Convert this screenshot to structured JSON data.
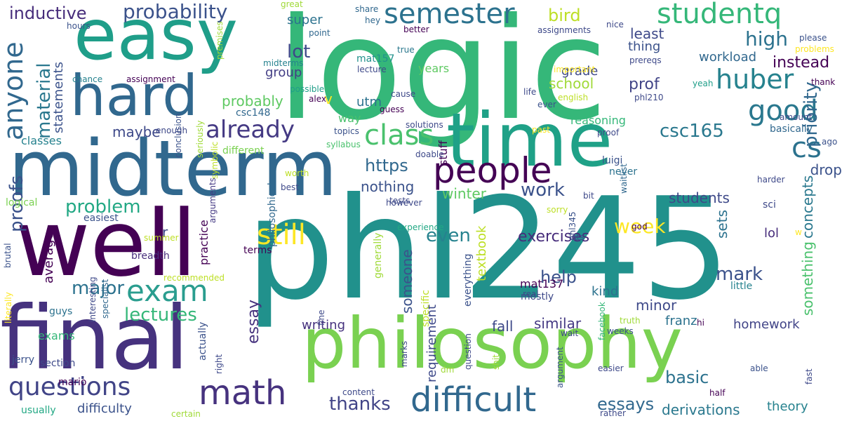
{
  "words": [
    {
      "text": "logic",
      "color": "#35b779"
    },
    {
      "text": "phl245",
      "color": "#21918c"
    },
    {
      "text": "midterm",
      "color": "#31688e"
    },
    {
      "text": "well",
      "color": "#440154"
    },
    {
      "text": "easy",
      "color": "#1f9e89"
    },
    {
      "text": "final",
      "color": "#46327e"
    },
    {
      "text": "philosophy",
      "color": "#7ad151"
    },
    {
      "text": "time",
      "color": "#1fa187"
    },
    {
      "text": "hard",
      "color": "#31688e"
    },
    {
      "text": "difficult",
      "color": "#31688e"
    },
    {
      "text": "math",
      "color": "#46327e"
    },
    {
      "text": "questions",
      "color": "#414487"
    },
    {
      "text": "people",
      "color": "#440154"
    },
    {
      "text": "exam",
      "color": "#2a9d8f"
    },
    {
      "text": "semester",
      "color": "#2c728e"
    },
    {
      "text": "studentq",
      "color": "#35b779"
    },
    {
      "text": "huber",
      "color": "#26828e"
    },
    {
      "text": "good",
      "color": "#2a788e"
    },
    {
      "text": "class",
      "color": "#4ac16d"
    },
    {
      "text": "still",
      "color": "#fde725"
    },
    {
      "text": "cs",
      "color": "#2c728e"
    },
    {
      "text": "already",
      "color": "#443983"
    },
    {
      "text": "anyone",
      "color": "#31688e"
    },
    {
      "text": "probability",
      "color": "#3b528b"
    },
    {
      "text": "inductive",
      "color": "#472d7b"
    },
    {
      "text": "lectures",
      "color": "#35b779"
    },
    {
      "text": "major",
      "color": "#2c728e"
    },
    {
      "text": "problem",
      "color": "#22a884"
    },
    {
      "text": "thanks",
      "color": "#414487"
    },
    {
      "text": "work",
      "color": "#3b528b"
    },
    {
      "text": "week",
      "color": "#fde725"
    },
    {
      "text": "csc165",
      "color": "#2a788e"
    },
    {
      "text": "high",
      "color": "#2c728e"
    },
    {
      "text": "bird",
      "color": "#bddf26"
    },
    {
      "text": "lot",
      "color": "#3e4989"
    },
    {
      "text": "material",
      "color": "#2a788e"
    },
    {
      "text": "proofs",
      "color": "#3b528b"
    },
    {
      "text": "https",
      "color": "#31688e"
    },
    {
      "text": "even",
      "color": "#26828e"
    },
    {
      "text": "help",
      "color": "#3b528b"
    },
    {
      "text": "basic",
      "color": "#2c728e"
    },
    {
      "text": "essays",
      "color": "#31688e"
    },
    {
      "text": "mark",
      "color": "#3b528b"
    },
    {
      "text": "priority",
      "color": "#31688e"
    },
    {
      "text": "essay",
      "color": "#46327e"
    },
    {
      "text": "exercises",
      "color": "#472d7b"
    },
    {
      "text": "probably",
      "color": "#5ec962"
    },
    {
      "text": "school",
      "color": "#a0da39"
    },
    {
      "text": "grade",
      "color": "#3e4989"
    },
    {
      "text": "prof",
      "color": "#414487"
    },
    {
      "text": "instead",
      "color": "#440154"
    },
    {
      "text": "least",
      "color": "#3e4989"
    },
    {
      "text": "thing",
      "color": "#3b528b"
    },
    {
      "text": "workload",
      "color": "#31688e"
    },
    {
      "text": "group",
      "color": "#433e85"
    },
    {
      "text": "super",
      "color": "#2c728e"
    },
    {
      "text": "statements",
      "color": "#3b528b"
    },
    {
      "text": "maybe",
      "color": "#3e4989"
    },
    {
      "text": "nothing",
      "color": "#3b528b"
    },
    {
      "text": "winter",
      "color": "#5ec962"
    },
    {
      "text": "drop",
      "color": "#3b528b"
    },
    {
      "text": "students",
      "color": "#3e4989"
    },
    {
      "text": "sets",
      "color": "#2c728e"
    },
    {
      "text": "concepts",
      "color": "#2a788e"
    },
    {
      "text": "someone",
      "color": "#3b528b"
    },
    {
      "text": "minor",
      "color": "#3e4989"
    },
    {
      "text": "homework",
      "color": "#414487"
    },
    {
      "text": "something",
      "color": "#4ac16d"
    },
    {
      "text": "franz",
      "color": "#2c728e"
    },
    {
      "text": "similar",
      "color": "#443983"
    },
    {
      "text": "fall",
      "color": "#3e4989"
    },
    {
      "text": "writing",
      "color": "#46327e"
    },
    {
      "text": "derivations",
      "color": "#2a788e"
    },
    {
      "text": "theory",
      "color": "#26828e"
    },
    {
      "text": "average",
      "color": "#440154"
    },
    {
      "text": "textbook",
      "color": "#bddf26"
    },
    {
      "text": "requirement",
      "color": "#3e4989"
    },
    {
      "text": "kind",
      "color": "#2c728e"
    },
    {
      "text": "v",
      "color": "#fde725"
    },
    {
      "text": "r",
      "color": "#3e4989"
    },
    {
      "text": "utm",
      "color": "#2c728e"
    },
    {
      "text": "lol",
      "color": "#472d7b"
    },
    {
      "text": "mat157",
      "color": "#21918c"
    },
    {
      "text": "mat137",
      "color": "#440154"
    },
    {
      "text": "mostly",
      "color": "#3e4989"
    },
    {
      "text": "practice",
      "color": "#440154"
    },
    {
      "text": "difficulty",
      "color": "#3b528b"
    },
    {
      "text": "exams",
      "color": "#35b779"
    },
    {
      "text": "usually",
      "color": "#22a884"
    },
    {
      "text": "classes",
      "color": "#26828e"
    },
    {
      "text": "different",
      "color": "#7ad151"
    },
    {
      "text": "stuff",
      "color": "#440154"
    },
    {
      "text": "way",
      "color": "#4ac16d"
    },
    {
      "text": "years",
      "color": "#5ec962"
    },
    {
      "text": "reasoning",
      "color": "#35b779"
    },
    {
      "text": "luigi",
      "color": "#3b528b"
    },
    {
      "text": "never",
      "color": "#2c728e"
    },
    {
      "text": "sci",
      "color": "#3e4989"
    },
    {
      "text": "basically",
      "color": "#31688e"
    },
    {
      "text": "little",
      "color": "#26828e"
    },
    {
      "text": "everything",
      "color": "#3b528b"
    },
    {
      "text": "generally",
      "color": "#a0da39"
    },
    {
      "text": "specific",
      "color": "#bddf26"
    },
    {
      "text": "logical",
      "color": "#7ad151"
    },
    {
      "text": "easiest",
      "color": "#3b528b"
    },
    {
      "text": "csc148",
      "color": "#31688e"
    },
    {
      "text": "philosophical",
      "color": "#31688e"
    },
    {
      "text": "interesting",
      "color": "#3e4989"
    },
    {
      "text": "specialist",
      "color": "#31688e"
    },
    {
      "text": "section",
      "color": "#3e4989"
    },
    {
      "text": "jerry",
      "color": "#3b528b"
    },
    {
      "text": "brutal",
      "color": "#3b528b"
    },
    {
      "text": "mario",
      "color": "#440154"
    },
    {
      "text": "literally",
      "color": "#fde725"
    },
    {
      "text": "guys",
      "color": "#2c728e"
    },
    {
      "text": "actually",
      "color": "#3b528b"
    },
    {
      "text": "right",
      "color": "#3e4989"
    },
    {
      "text": "breadth",
      "color": "#472d7b"
    },
    {
      "text": "recommended",
      "color": "#bddf26"
    },
    {
      "text": "summer",
      "color": "#bddf26"
    },
    {
      "text": "terms",
      "color": "#440154"
    },
    {
      "text": "arguments",
      "color": "#443983"
    },
    {
      "text": "conclusion",
      "color": "#3b528b"
    },
    {
      "text": "seriously",
      "color": "#a0da39"
    },
    {
      "text": "symbolic",
      "color": "#bddf26"
    },
    {
      "text": "best",
      "color": "#3e4989"
    },
    {
      "text": "worth",
      "color": "#bddf26"
    },
    {
      "text": "tests",
      "color": "#3e4989"
    },
    {
      "text": "however",
      "color": "#3e4989"
    },
    {
      "text": "experience",
      "color": "#22a884"
    },
    {
      "text": "topics",
      "color": "#3b528b"
    },
    {
      "text": "syllabus",
      "color": "#4ac16d"
    },
    {
      "text": "doable",
      "color": "#3e4989"
    },
    {
      "text": "solutions",
      "color": "#3e4989"
    },
    {
      "text": "guess",
      "color": "#440154"
    },
    {
      "text": "enough",
      "color": "#3e4989"
    },
    {
      "text": "alex",
      "color": "#440154"
    },
    {
      "text": "possible",
      "color": "#1f9e89"
    },
    {
      "text": "cause",
      "color": "#3e4989"
    },
    {
      "text": "premises",
      "color": "#a0da39"
    },
    {
      "text": "midterms",
      "color": "#26828e"
    },
    {
      "text": "assignment",
      "color": "#440154"
    },
    {
      "text": "chance",
      "color": "#26828e"
    },
    {
      "text": "hours",
      "color": "#3b528b"
    },
    {
      "text": "point",
      "color": "#31688e"
    },
    {
      "text": "great",
      "color": "#a0da39"
    },
    {
      "text": "hey",
      "color": "#31688e"
    },
    {
      "text": "share",
      "color": "#31688e"
    },
    {
      "text": "better",
      "color": "#440154"
    },
    {
      "text": "true",
      "color": "#2a788e"
    },
    {
      "text": "lecture",
      "color": "#3e4989"
    },
    {
      "text": "important",
      "color": "#fde725"
    },
    {
      "text": "english",
      "color": "#bddf26"
    },
    {
      "text": "life",
      "color": "#3e4989"
    },
    {
      "text": "past",
      "color": "#fde725"
    },
    {
      "text": "proof",
      "color": "#3e4989"
    },
    {
      "text": "ever",
      "color": "#3b528b"
    },
    {
      "text": "phl210",
      "color": "#3e4989"
    },
    {
      "text": "prereqs",
      "color": "#3e4989"
    },
    {
      "text": "nice",
      "color": "#3e4989"
    },
    {
      "text": "assignments",
      "color": "#3e4989"
    },
    {
      "text": "please",
      "color": "#3b528b"
    },
    {
      "text": "problems",
      "color": "#fde725"
    },
    {
      "text": "thank",
      "color": "#440154"
    },
    {
      "text": "amount",
      "color": "#3e4989"
    },
    {
      "text": "yeah",
      "color": "#1f9e89"
    },
    {
      "text": "ago",
      "color": "#3b528b"
    },
    {
      "text": "harder",
      "color": "#3e4989"
    },
    {
      "text": "bit",
      "color": "#3e4989"
    },
    {
      "text": "sorry",
      "color": "#bddf26"
    },
    {
      "text": "god",
      "color": "#440154"
    },
    {
      "text": "waitlist",
      "color": "#31688e"
    },
    {
      "text": "lots",
      "color": "#3e4989"
    },
    {
      "text": "w",
      "color": "#fde725"
    },
    {
      "text": "phl345",
      "color": "#3b528b"
    },
    {
      "text": "real",
      "color": "#3e4989"
    },
    {
      "text": "hi",
      "color": "#440154"
    },
    {
      "text": "weeks",
      "color": "#3b528b"
    },
    {
      "text": "truth",
      "color": "#a0da39"
    },
    {
      "text": "wait",
      "color": "#3e4989"
    },
    {
      "text": "argument",
      "color": "#3b528b"
    },
    {
      "text": "facebook",
      "color": "#35b779"
    },
    {
      "text": "able",
      "color": "#3b528b"
    },
    {
      "text": "half",
      "color": "#440154"
    },
    {
      "text": "fast",
      "color": "#3e4989"
    },
    {
      "text": "easier",
      "color": "#3e4989"
    },
    {
      "text": "rather",
      "color": "#3e4989"
    },
    {
      "text": "certain",
      "color": "#a0da39"
    },
    {
      "text": "content",
      "color": "#3e4989"
    },
    {
      "text": "marks",
      "color": "#3e4989"
    },
    {
      "text": "dm",
      "color": "#a0da39"
    },
    {
      "text": "question",
      "color": "#3e4989"
    },
    {
      "text": "shit",
      "color": "#a0da39"
    },
    {
      "text": "fine",
      "color": "#3e4989"
    }
  ]
}
